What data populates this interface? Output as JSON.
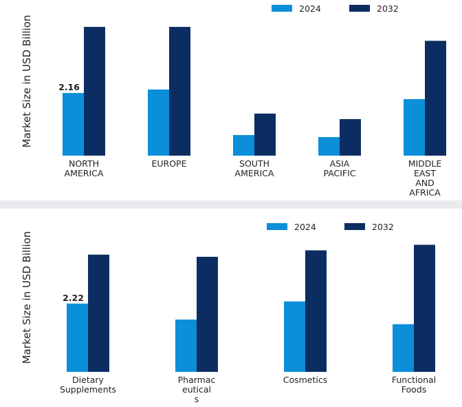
{
  "chart_data": [
    {
      "type": "bar",
      "y_label": "Market Size in USD Billion",
      "categories": [
        "NORTH\nAMERICA",
        "EUROPE",
        "SOUTH\nAMERICA",
        "ASIA\nPACIFIC",
        "MIDDLE\nEAST\nAND\nAFRICA"
      ],
      "series": [
        {
          "name": "2024",
          "color": "#0b8fd9",
          "values": [
            2.16,
            2.28,
            0.71,
            0.64,
            1.95
          ],
          "value_labels": [
            "2.16",
            null,
            null,
            null,
            null
          ]
        },
        {
          "name": "2032",
          "color": "#0c2d62",
          "values": [
            4.44,
            4.44,
            1.45,
            1.26,
            3.96
          ]
        }
      ],
      "ylim": [
        0,
        5.13
      ],
      "legend": "top-right"
    },
    {
      "type": "bar",
      "y_label": "Market Size in USD Billion",
      "categories": [
        "Dietary\nSupplements",
        "Pharmac\neutical\ns",
        "Cosmetics",
        "Functional\nFoods"
      ],
      "series": [
        {
          "name": "2024",
          "color": "#0b8fd9",
          "values": [
            2.22,
            1.7,
            2.29,
            1.55
          ],
          "value_labels": [
            "2.22",
            null,
            null,
            null
          ]
        },
        {
          "name": "2032",
          "color": "#0c2d62",
          "values": [
            3.81,
            3.74,
            3.95,
            4.13
          ]
        }
      ],
      "ylim": [
        0,
        4.7
      ],
      "legend": "top-right"
    }
  ]
}
